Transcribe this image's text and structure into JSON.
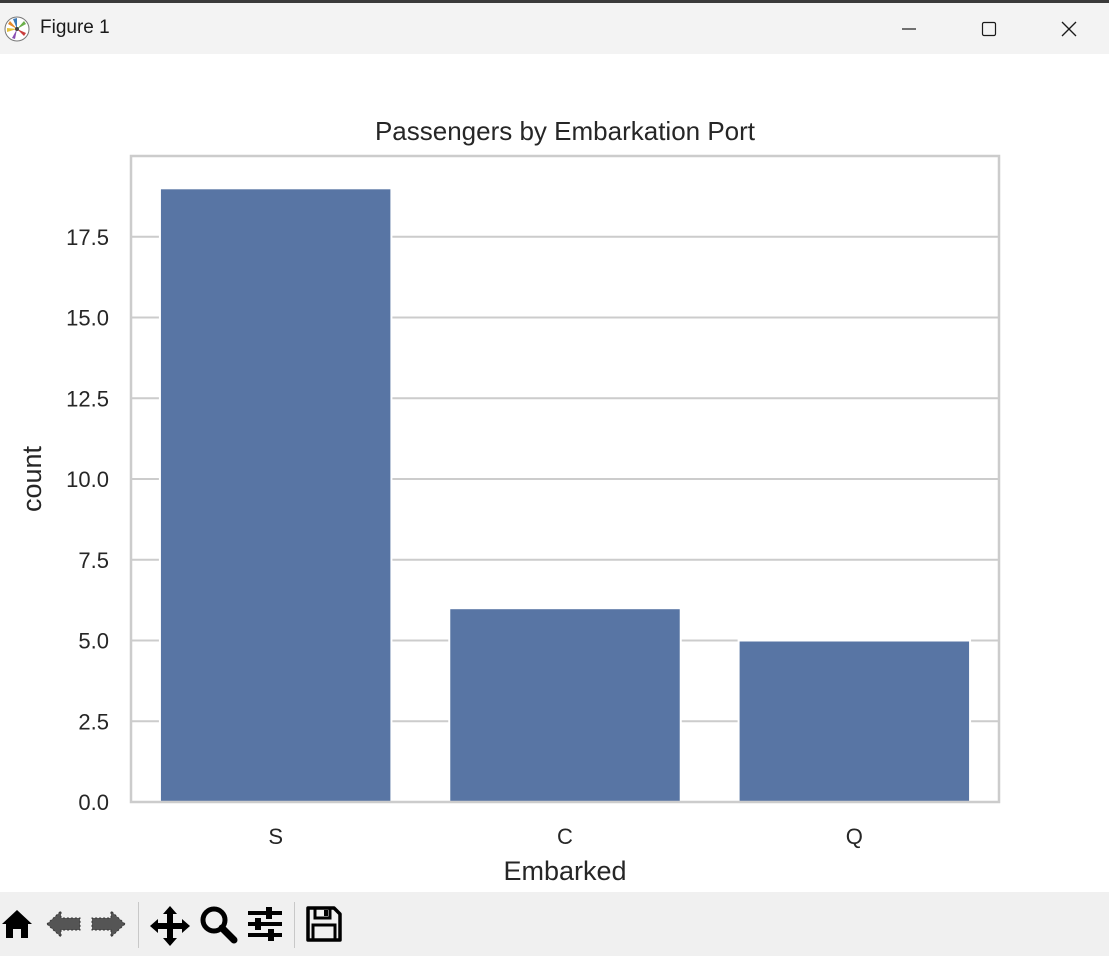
{
  "window": {
    "title": "Figure 1"
  },
  "toolbar": {
    "tools": [
      "home-icon",
      "back-icon",
      "forward-icon",
      "pan-icon",
      "zoom-icon",
      "configure-subplots-icon",
      "save-icon"
    ]
  },
  "colors": {
    "bar": "#5875a4",
    "axes_frame": "#cccccc",
    "grid": "#cccccc",
    "titlebar": "#f3f3f3",
    "toolbar": "#f0f0f0"
  },
  "chart_data": {
    "type": "bar",
    "title": "Passengers by Embarkation Port",
    "xlabel": "Embarked",
    "ylabel": "count",
    "categories": [
      "S",
      "C",
      "Q"
    ],
    "values": [
      19,
      6,
      5
    ],
    "ylim": [
      0,
      20
    ],
    "yticks": [
      0.0,
      2.5,
      5.0,
      7.5,
      10.0,
      12.5,
      15.0,
      17.5
    ],
    "ytick_labels": [
      "0.0",
      "2.5",
      "5.0",
      "7.5",
      "10.0",
      "12.5",
      "15.0",
      "17.5"
    ],
    "grid": true,
    "grid_axis": "y"
  }
}
